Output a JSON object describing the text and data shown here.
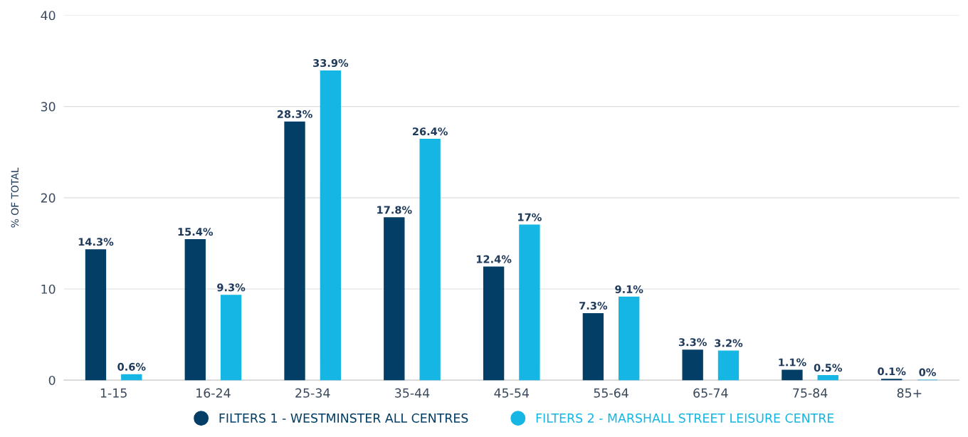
{
  "chart_data": {
    "type": "bar",
    "ylabel": "% OF TOTAL",
    "categories": [
      "1-15",
      "16-24",
      "25-34",
      "35-44",
      "45-54",
      "55-64",
      "65-74",
      "75-84",
      "85+"
    ],
    "series": [
      {
        "name": "FILTERS 1 - WESTMINSTER ALL CENTRES",
        "color": "#033e66",
        "values": [
          14.3,
          15.4,
          28.3,
          17.8,
          12.4,
          7.3,
          3.3,
          1.1,
          0.1
        ],
        "value_labels": [
          "14.3%",
          "15.4%",
          "28.3%",
          "17.8%",
          "12.4%",
          "7.3%",
          "3.3%",
          "1.1%",
          "0.1%"
        ]
      },
      {
        "name": "FILTERS 2 - MARSHALL STREET LEISURE CENTRE",
        "color": "#15b6e3",
        "values": [
          0.6,
          9.3,
          33.9,
          26.4,
          17,
          9.1,
          3.2,
          0.5,
          0
        ],
        "value_labels": [
          "0.6%",
          "9.3%",
          "33.9%",
          "26.4%",
          "17%",
          "9.1%",
          "3.2%",
          "0.5%",
          "0%"
        ]
      }
    ],
    "ylim": [
      0,
      40
    ],
    "yticks": [
      0,
      10,
      20,
      30,
      40
    ],
    "grid": "y",
    "legend": "bottom"
  }
}
